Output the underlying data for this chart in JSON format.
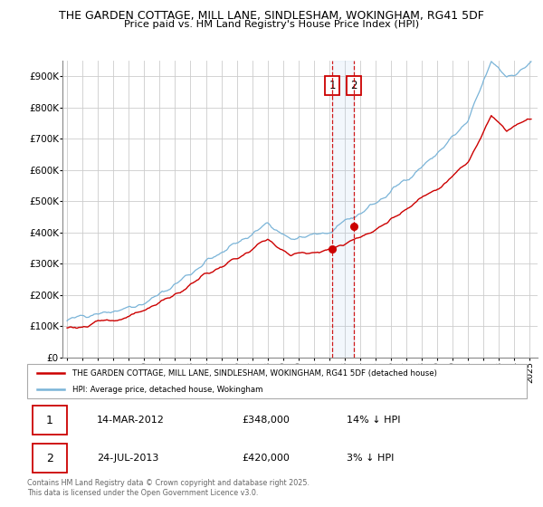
{
  "title_line1": "THE GARDEN COTTAGE, MILL LANE, SINDLESHAM, WOKINGHAM, RG41 5DF",
  "title_line2": "Price paid vs. HM Land Registry's House Price Index (HPI)",
  "hpi_color": "#7ab4d8",
  "price_color": "#cc0000",
  "vline_color": "#cc0000",
  "vband_color": "#ddeeff",
  "sale1_year": 2012.2,
  "sale2_year": 2013.57,
  "sale1_price": 348000,
  "sale2_price": 420000,
  "legend_label1": "THE GARDEN COTTAGE, MILL LANE, SINDLESHAM, WOKINGHAM, RG41 5DF (detached house)",
  "legend_label2": "HPI: Average price, detached house, Wokingham",
  "note1_date": "14-MAR-2012",
  "note1_price": "£348,000",
  "note1_hpi": "14% ↓ HPI",
  "note2_date": "24-JUL-2013",
  "note2_price": "£420,000",
  "note2_hpi": "3% ↓ HPI",
  "footer": "Contains HM Land Registry data © Crown copyright and database right 2025.\nThis data is licensed under the Open Government Licence v3.0.",
  "background_color": "#ffffff",
  "grid_color": "#cccccc",
  "ylim": [
    0,
    950000
  ],
  "yticks": [
    0,
    100000,
    200000,
    300000,
    400000,
    500000,
    600000,
    700000,
    800000,
    900000
  ],
  "ytick_labels": [
    "£0",
    "£100K",
    "£200K",
    "£300K",
    "£400K",
    "£500K",
    "£600K",
    "£700K",
    "£800K",
    "£900K"
  ],
  "xlim_min": 1994.7,
  "xlim_max": 2025.5
}
